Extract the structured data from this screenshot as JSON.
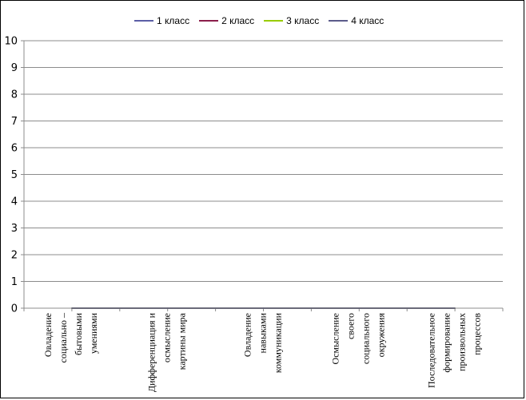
{
  "chart_data": {
    "type": "line",
    "title": "",
    "xlabel": "",
    "ylabel": "",
    "ylim": [
      0,
      10
    ],
    "yticks": [
      0,
      1,
      2,
      3,
      4,
      5,
      6,
      7,
      8,
      9,
      10
    ],
    "grid": true,
    "legend_position": "top",
    "categories": [
      [
        "Овладение",
        "социально –",
        "бытовыми",
        "умениями"
      ],
      [
        "Дифференциация и",
        "осмысление",
        "картины мира"
      ],
      [
        "Овладение",
        "навыками",
        "коммуникации"
      ],
      [
        "Осмысление",
        "своего",
        "социального",
        "окружения"
      ],
      [
        "Последовательное",
        "формирование",
        "произвольных",
        "процессов"
      ]
    ],
    "series": [
      {
        "name": "1 класс",
        "color": "#5b5ea6",
        "values": [
          0,
          0,
          0,
          0,
          0
        ]
      },
      {
        "name": "2 класс",
        "color": "#8b1e4b",
        "values": [
          0,
          0,
          0,
          0,
          0
        ]
      },
      {
        "name": "3 класс",
        "color": "#99cc00",
        "values": [
          0,
          0,
          0,
          0,
          0
        ]
      },
      {
        "name": "4 класс",
        "color": "#5b5b8a",
        "values": [
          0,
          0,
          0,
          0,
          0
        ]
      }
    ]
  }
}
